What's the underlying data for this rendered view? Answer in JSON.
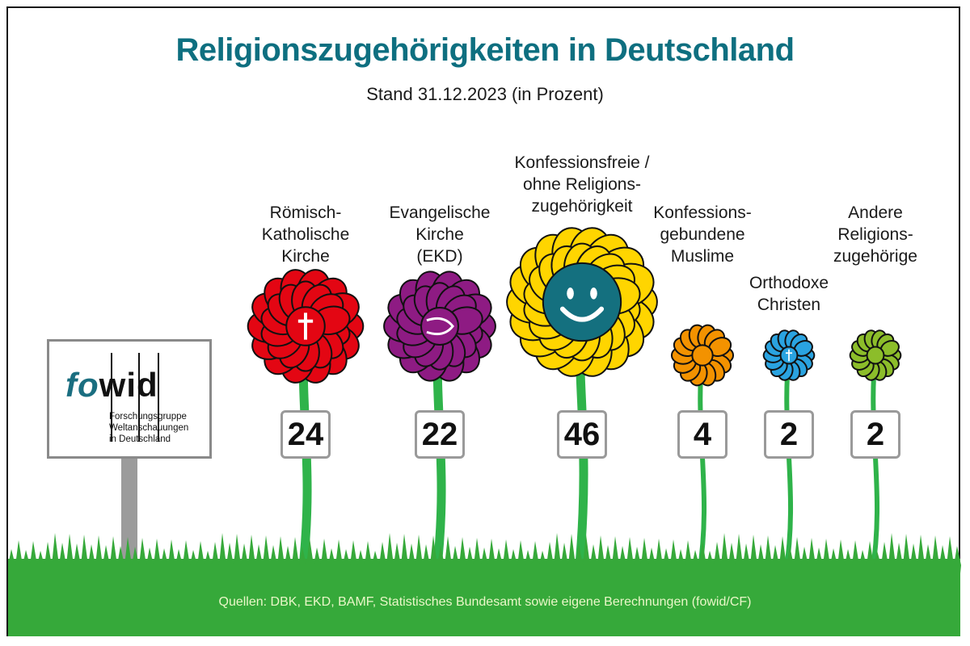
{
  "chart_data": {
    "type": "pictorial-bar",
    "title": "Religionszugehörigkeiten in Deutschland",
    "subtitle": "Stand 31.12.2023  (in Prozent)",
    "categories": [
      "Römisch-\nKatholische\nKirche",
      "Evangelische\nKirche\n(EKD)",
      "Konfessionsfreie /\nohne Religions-\nzugehörigkeit",
      "Konfessions-\ngebundene\nMuslime",
      "Orthodoxe\nChristen",
      "Andere\nReligions-\nzugehörige"
    ],
    "values": [
      24,
      22,
      46,
      4,
      2,
      2
    ],
    "value_labels": [
      "24",
      "22",
      "46",
      "4",
      "2",
      "2"
    ],
    "unit": "Prozent",
    "colors": [
      "#e30613",
      "#8e1b83",
      "#ffd500",
      "#f39200",
      "#2aa3e0",
      "#8cbd2a"
    ],
    "symbols": [
      "cross-icon",
      "fish-icon",
      "smiley-icon",
      "crescent-icon",
      "cross-icon",
      "none"
    ]
  },
  "logo": {
    "prefix": "fo",
    "suffix": "wid",
    "subtitle": "Forschungsgruppe\nWeltanschauungen\nin Deutschland"
  },
  "source": "Quellen: DBK, EKD, BAMF, Statistisches Bundesamt sowie eigene Berechnungen (fowid/CF)",
  "colors": {
    "title": "#0e6f80",
    "grass": "#36a93a",
    "stem": "#2fb34a"
  }
}
